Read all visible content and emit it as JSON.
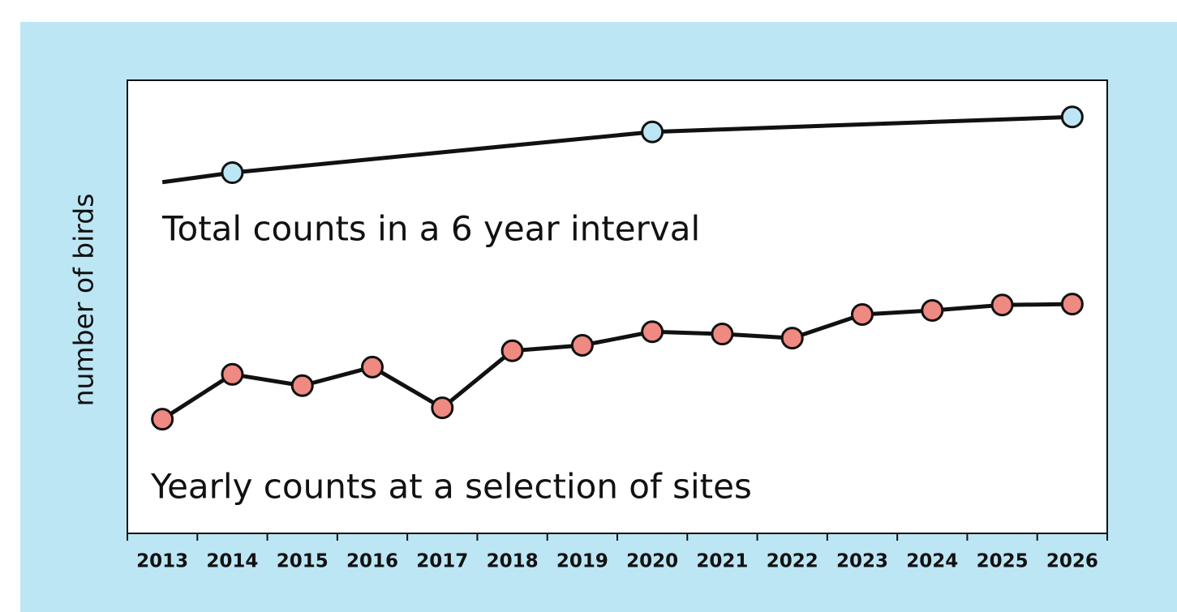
{
  "chart_data": {
    "type": "line",
    "y_label": "number of birds",
    "categories": [
      "2013",
      "2014",
      "2015",
      "2016",
      "2017",
      "2018",
      "2019",
      "2020",
      "2021",
      "2022",
      "2023",
      "2024",
      "2025",
      "2026"
    ],
    "ylim": [
      0,
      100
    ],
    "series": [
      {
        "name": "Total counts in a 6 year interval",
        "color": "#bde6f5",
        "x": [
          "2013",
          "2014",
          "2020",
          "2026"
        ],
        "markers": [
          false,
          true,
          true,
          true
        ],
        "values": [
          77.5,
          79.6,
          88.6,
          91.9
        ]
      },
      {
        "name": "Yearly counts at a selection of sites",
        "color": "#ee8a82",
        "values": [
          25.2,
          35.1,
          32.6,
          36.7,
          27.7,
          40.3,
          41.5,
          44.5,
          44.0,
          43.1,
          48.3,
          49.2,
          50.4,
          50.6
        ]
      }
    ]
  }
}
